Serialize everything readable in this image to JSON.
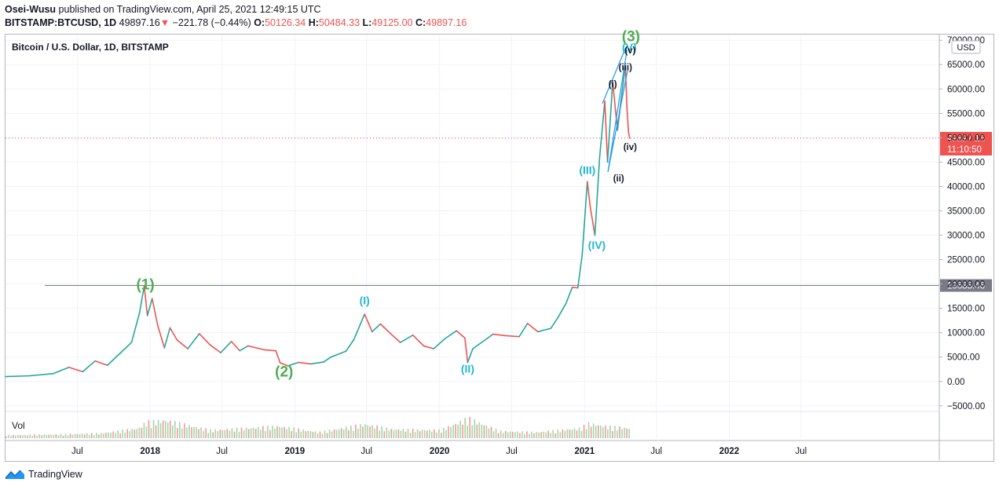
{
  "header": {
    "author": "Osei-Wusu",
    "published_text": "published on TradingView.com, April 25, 2021 12:49:15 UTC",
    "symbol": "BITSTAMP:BTCUSD, 1D",
    "last_price": "49897.16",
    "change_arrow": "▼",
    "change": "−221.78 (−0.44%)",
    "o_label": "O:",
    "o_value": "50126.34",
    "h_label": "H:",
    "h_value": "50484.33",
    "l_label": "L:",
    "l_value": "49125.00",
    "c_label": "C:",
    "c_value": "49897.16"
  },
  "footer": {
    "brand": "TradingView"
  },
  "chart_data": {
    "type": "line",
    "title": "Bitcoin / U.S. Dollar, 1D, BITSTAMP",
    "currency_label": "USD",
    "volume_label": "Vol",
    "ylim": [
      -6000,
      71000
    ],
    "yticks": [
      -5000,
      0,
      5000,
      10000,
      15000,
      20000,
      25000,
      30000,
      35000,
      40000,
      45000,
      50000,
      55000,
      60000,
      65000,
      70000
    ],
    "ytick_labels": [
      "−5000.00",
      "0.00",
      "5000.00",
      "10000.00",
      "15000.00",
      "20000.00",
      "25000.00",
      "30000.00",
      "35000.00",
      "40000.00",
      "45000.00",
      "50000.00",
      "55000.00",
      "60000.00",
      "65000.00",
      "70000.00"
    ],
    "x_range": [
      "2017-01-01",
      "2023-06-15"
    ],
    "xticks": [
      {
        "label": "Jul",
        "date": "2017-07-01"
      },
      {
        "label": "2018",
        "date": "2018-01-01",
        "bold": true
      },
      {
        "label": "Jul",
        "date": "2018-07-01"
      },
      {
        "label": "2019",
        "date": "2019-01-01",
        "bold": true
      },
      {
        "label": "Jul",
        "date": "2019-07-01"
      },
      {
        "label": "2020",
        "date": "2020-01-01",
        "bold": true
      },
      {
        "label": "Jul",
        "date": "2020-07-01"
      },
      {
        "label": "2021",
        "date": "2021-01-01",
        "bold": true
      },
      {
        "label": "Jul",
        "date": "2021-07-01"
      },
      {
        "label": "2022",
        "date": "2022-01-01",
        "bold": true
      },
      {
        "label": "Jul",
        "date": "2022-07-01"
      }
    ],
    "price_series": [
      [
        "2017-01-01",
        1000
      ],
      [
        "2017-03-01",
        1150
      ],
      [
        "2017-05-01",
        1600
      ],
      [
        "2017-06-10",
        2900
      ],
      [
        "2017-07-15",
        2000
      ],
      [
        "2017-08-15",
        4200
      ],
      [
        "2017-09-15",
        3300
      ],
      [
        "2017-10-20",
        6000
      ],
      [
        "2017-11-15",
        8000
      ],
      [
        "2017-12-05",
        14000
      ],
      [
        "2017-12-17",
        19600
      ],
      [
        "2017-12-25",
        13500
      ],
      [
        "2018-01-06",
        17000
      ],
      [
        "2018-01-20",
        11500
      ],
      [
        "2018-02-06",
        6900
      ],
      [
        "2018-02-20",
        11000
      ],
      [
        "2018-03-10",
        8500
      ],
      [
        "2018-04-06",
        6700
      ],
      [
        "2018-05-05",
        9800
      ],
      [
        "2018-06-01",
        7500
      ],
      [
        "2018-06-28",
        5900
      ],
      [
        "2018-07-25",
        8200
      ],
      [
        "2018-08-15",
        6300
      ],
      [
        "2018-09-05",
        7300
      ],
      [
        "2018-10-15",
        6500
      ],
      [
        "2018-11-14",
        6300
      ],
      [
        "2018-11-25",
        3800
      ],
      [
        "2018-12-15",
        3200
      ],
      [
        "2019-01-10",
        3900
      ],
      [
        "2019-02-10",
        3600
      ],
      [
        "2019-03-15",
        4000
      ],
      [
        "2019-04-02",
        5000
      ],
      [
        "2019-05-10",
        6200
      ],
      [
        "2019-05-30",
        8600
      ],
      [
        "2019-06-26",
        13800
      ],
      [
        "2019-07-15",
        10200
      ],
      [
        "2019-08-05",
        11800
      ],
      [
        "2019-09-01",
        9700
      ],
      [
        "2019-09-24",
        8000
      ],
      [
        "2019-10-26",
        9500
      ],
      [
        "2019-11-22",
        7300
      ],
      [
        "2019-12-17",
        6700
      ],
      [
        "2020-01-15",
        8800
      ],
      [
        "2020-02-13",
        10400
      ],
      [
        "2020-03-05",
        8900
      ],
      [
        "2020-03-12",
        3900
      ],
      [
        "2020-03-25",
        6700
      ],
      [
        "2020-04-30",
        8800
      ],
      [
        "2020-05-15",
        9700
      ],
      [
        "2020-06-15",
        9400
      ],
      [
        "2020-07-20",
        9200
      ],
      [
        "2020-08-10",
        11900
      ],
      [
        "2020-09-05",
        10200
      ],
      [
        "2020-10-08",
        10900
      ],
      [
        "2020-10-25",
        13000
      ],
      [
        "2020-11-15",
        16000
      ],
      [
        "2020-12-01",
        19300
      ],
      [
        "2020-12-15",
        19200
      ],
      [
        "2020-12-26",
        26000
      ],
      [
        "2021-01-08",
        41000
      ],
      [
        "2021-01-15",
        36000
      ],
      [
        "2021-01-27",
        30000
      ],
      [
        "2021-02-08",
        46000
      ],
      [
        "2021-02-21",
        57500
      ],
      [
        "2021-02-28",
        45000
      ],
      [
        "2021-03-13",
        61500
      ],
      [
        "2021-03-25",
        51500
      ],
      [
        "2021-04-05",
        59000
      ],
      [
        "2021-04-14",
        64800
      ],
      [
        "2021-04-18",
        56000
      ],
      [
        "2021-04-22",
        51000
      ],
      [
        "2021-04-25",
        49897.16
      ]
    ],
    "volume_series": [
      [
        "2017-01-01",
        0.15
      ],
      [
        "2017-06-01",
        0.2
      ],
      [
        "2017-09-01",
        0.25
      ],
      [
        "2017-12-01",
        0.5
      ],
      [
        "2017-12-20",
        0.8
      ],
      [
        "2018-02-06",
        0.9
      ],
      [
        "2018-06-01",
        0.4
      ],
      [
        "2018-11-20",
        0.6
      ],
      [
        "2019-03-01",
        0.3
      ],
      [
        "2019-06-26",
        0.7
      ],
      [
        "2019-09-01",
        0.45
      ],
      [
        "2020-01-01",
        0.4
      ],
      [
        "2020-03-12",
        1.0
      ],
      [
        "2020-06-01",
        0.35
      ],
      [
        "2020-09-01",
        0.3
      ],
      [
        "2020-12-20",
        0.5
      ],
      [
        "2021-01-10",
        0.75
      ],
      [
        "2021-02-20",
        0.6
      ],
      [
        "2021-04-25",
        0.5
      ]
    ],
    "horizontal_levels": [
      {
        "value": 19685.46,
        "label": "19685.46",
        "from": "2017-01-01"
      }
    ],
    "last_price_label": "49897.16",
    "countdown_label": "11:10:50",
    "trend_lines": [
      {
        "from": [
          "2021-03-01",
          43000
        ],
        "to": [
          "2021-04-20",
          64000
        ]
      },
      {
        "from": [
          "2021-03-01",
          43000
        ],
        "to": [
          "2021-04-18",
          68000
        ]
      },
      {
        "from": [
          "2021-02-15",
          57000
        ],
        "to": [
          "2021-04-15",
          68500
        ]
      }
    ],
    "annotations": [
      {
        "text": "(1)",
        "date": "2017-12-20",
        "price": 18900,
        "style": "green-large"
      },
      {
        "text": "(2)",
        "date": "2018-12-05",
        "price": 1000,
        "style": "green-large"
      },
      {
        "text": "(3)",
        "date": "2021-04-28",
        "price": 69800,
        "style": "green-large"
      },
      {
        "text": "(I)",
        "date": "2019-06-26",
        "price": 15800,
        "style": "cyan"
      },
      {
        "text": "(II)",
        "date": "2020-03-12",
        "price": 1800,
        "style": "cyan"
      },
      {
        "text": "(III)",
        "date": "2021-01-08",
        "price": 42600,
        "style": "cyan"
      },
      {
        "text": "(IV)",
        "date": "2021-02-01",
        "price": 27200,
        "style": "cyan"
      },
      {
        "text": "(V)",
        "date": "2021-04-24",
        "price": 67800,
        "style": "cyan"
      },
      {
        "text": "(i)",
        "date": "2021-03-13",
        "price": 60400,
        "style": "dark"
      },
      {
        "text": "(ii)",
        "date": "2021-03-28",
        "price": 41000,
        "style": "dark"
      },
      {
        "text": "(iii)",
        "date": "2021-04-14",
        "price": 63800,
        "style": "dark"
      },
      {
        "text": "(iv)",
        "date": "2021-04-26",
        "price": 47500,
        "style": "dark"
      },
      {
        "text": "(v)",
        "date": "2021-04-26",
        "price": 67300,
        "style": "dark"
      }
    ],
    "colors": {
      "up": "#26a69a",
      "down": "#ef5350",
      "green_label": "#4caf50",
      "cyan_label": "#22b8cf",
      "trend_line": "#2196f3",
      "level_line": "#787b86",
      "level_label_bg": "#787b86",
      "last_price_bg": "#ef5350",
      "volume_up": "#a5d6a7",
      "volume_down": "#ef9a9a"
    }
  }
}
